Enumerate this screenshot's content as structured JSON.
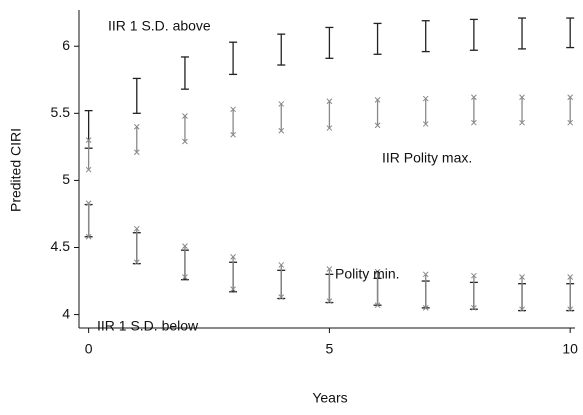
{
  "chart_data": {
    "type": "interval",
    "xlabel": "Years",
    "ylabel": "Predited CIRI",
    "x": [
      0,
      1,
      2,
      3,
      4,
      5,
      6,
      7,
      8,
      9,
      10
    ],
    "xlim": [
      -0.2,
      10.1
    ],
    "xticks": [
      0,
      5,
      10
    ],
    "ylim": [
      3.9,
      6.27
    ],
    "yticks": [
      4,
      4.5,
      5,
      5.5,
      6
    ],
    "annotations": [
      "IIR 1 S.D. above",
      "IIR Polity max.",
      "Polity min.",
      "IIR 1 S.D. below"
    ],
    "series": [
      {
        "color": "#222222",
        "marker": "cap",
        "low": [
          5.24,
          5.5,
          5.68,
          5.79,
          5.86,
          5.91,
          5.94,
          5.96,
          5.97,
          5.98,
          5.99
        ],
        "high": [
          5.52,
          5.76,
          5.92,
          6.03,
          6.09,
          6.14,
          6.17,
          6.19,
          6.2,
          6.21,
          6.21
        ]
      },
      {
        "color": "#888888",
        "marker": "x",
        "low": [
          5.08,
          5.21,
          5.29,
          5.34,
          5.37,
          5.39,
          5.41,
          5.42,
          5.43,
          5.43,
          5.43
        ],
        "high": [
          5.3,
          5.4,
          5.48,
          5.53,
          5.57,
          5.59,
          5.6,
          5.61,
          5.62,
          5.62,
          5.62
        ]
      },
      {
        "color": "#222222",
        "marker": "cap",
        "low": [
          4.58,
          4.38,
          4.26,
          4.17,
          4.12,
          4.09,
          4.07,
          4.05,
          4.04,
          4.03,
          4.03
        ],
        "high": [
          4.82,
          4.61,
          4.48,
          4.39,
          4.33,
          4.3,
          4.27,
          4.25,
          4.24,
          4.23,
          4.23
        ]
      },
      {
        "color": "#888888",
        "marker": "x",
        "low": [
          4.58,
          4.39,
          4.28,
          4.19,
          4.13,
          4.1,
          4.07,
          4.05,
          4.05,
          4.04,
          4.04
        ],
        "high": [
          4.83,
          4.64,
          4.51,
          4.43,
          4.37,
          4.34,
          4.32,
          4.3,
          4.29,
          4.28,
          4.28
        ]
      }
    ]
  }
}
